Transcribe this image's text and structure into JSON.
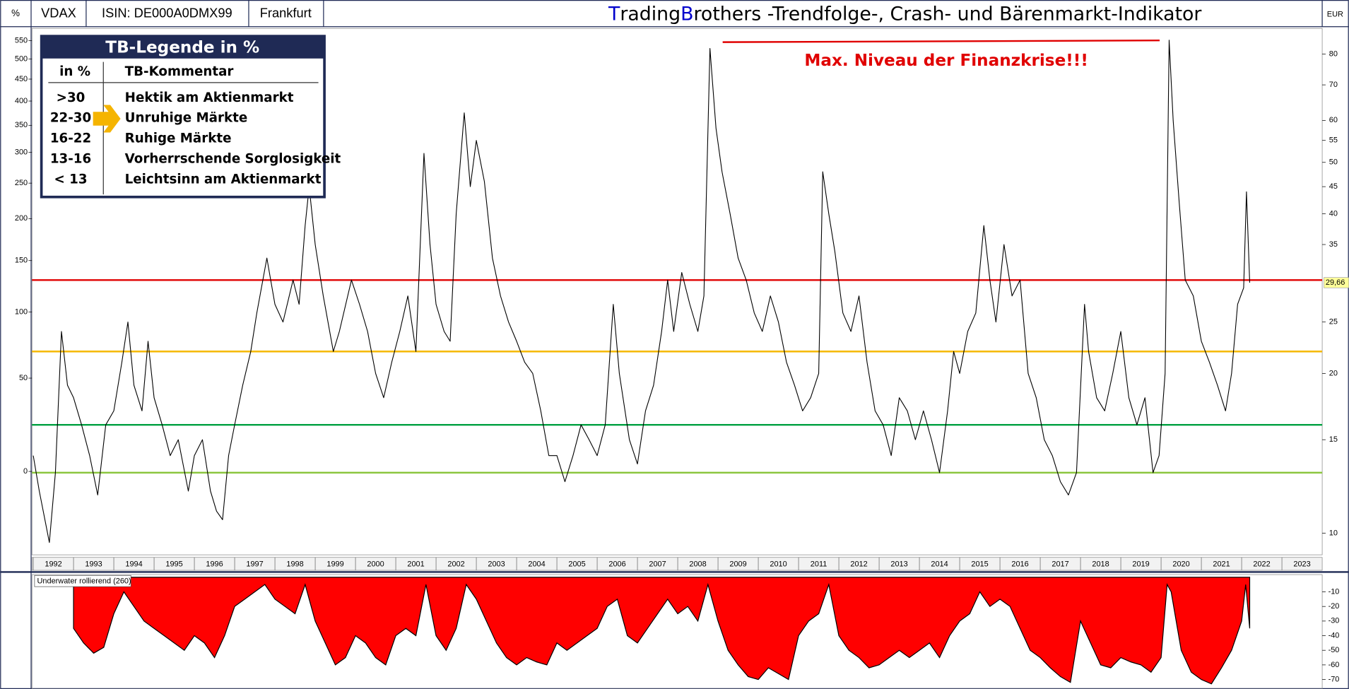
{
  "header": {
    "cells": [
      "%",
      "VDAX",
      "ISIN: DE000A0DMX99",
      "Frankfurt"
    ],
    "title_parts": [
      {
        "text": "T",
        "color": "#0000cc"
      },
      {
        "text": "rading",
        "color": "#000000"
      },
      {
        "text": "B",
        "color": "#0000cc"
      },
      {
        "text": "rothers -Trendfolge-, Crash- und Bärenmarkt-Indikator",
        "color": "#000000"
      }
    ],
    "right_unit": "EUR"
  },
  "legend_box": {
    "title": "TB-Legende in %",
    "columns": [
      "in %",
      "TB-Kommentar"
    ],
    "rows": [
      [
        ">30",
        "Hektik am Aktienmarkt"
      ],
      [
        "22-30",
        "Unruhige Märkte"
      ],
      [
        "16-22",
        "Ruhige Märkte"
      ],
      [
        "13-16",
        "Vorherrschende Sorglosigkeit"
      ],
      [
        "< 13",
        "Leichtsinn am Aktienmarkt"
      ]
    ]
  },
  "chart_data": [
    {
      "type": "line",
      "name": "VDAX",
      "color": "#000000",
      "log_scale": true,
      "annotation": "Max. Niveau der Finanzkrise!!!",
      "xlim": [
        1992,
        2024
      ],
      "xticks": [
        1992,
        1993,
        1994,
        1995,
        1996,
        1997,
        1998,
        1999,
        2000,
        2001,
        2002,
        2003,
        2004,
        2005,
        2006,
        2007,
        2008,
        2009,
        2010,
        2011,
        2012,
        2013,
        2014,
        2015,
        2016,
        2017,
        2018,
        2019,
        2020,
        2021,
        2022,
        2023
      ],
      "ylim": [
        9.1,
        87.8
      ],
      "yticks": [
        10,
        15,
        20,
        25,
        35,
        40,
        45,
        50,
        55,
        60,
        70,
        80
      ],
      "y2lim": [
        -30.4,
        573
      ],
      "y2ticks": [
        0,
        50,
        100,
        150,
        200,
        250,
        300,
        350,
        400,
        450,
        500,
        550
      ],
      "reference_lines": [
        {
          "value": 30,
          "color": "#e00000"
        },
        {
          "value": 22,
          "color": "#f5b800"
        },
        {
          "value": 16,
          "color": "#00a040"
        },
        {
          "value": 13,
          "color": "#8cc63f"
        }
      ],
      "last_value": {
        "value": 29.66,
        "label": "29,66"
      },
      "x": [
        1992.0,
        1992.15,
        1992.3,
        1992.4,
        1992.55,
        1992.7,
        1992.85,
        1993.0,
        1993.2,
        1993.4,
        1993.6,
        1993.8,
        1994.0,
        1994.2,
        1994.35,
        1994.5,
        1994.7,
        1994.85,
        1995.0,
        1995.2,
        1995.4,
        1995.6,
        1995.85,
        1996.0,
        1996.2,
        1996.4,
        1996.55,
        1996.7,
        1996.85,
        1997.0,
        1997.2,
        1997.4,
        1997.55,
        1997.8,
        1998.0,
        1998.2,
        1998.45,
        1998.6,
        1998.75,
        1998.85,
        1999.0,
        1999.2,
        1999.45,
        1999.6,
        1999.9,
        2000.1,
        2000.3,
        2000.5,
        2000.7,
        2000.9,
        2001.1,
        2001.3,
        2001.5,
        2001.7,
        2001.85,
        2002.0,
        2002.2,
        2002.35,
        2002.5,
        2002.7,
        2002.85,
        2003.0,
        2003.2,
        2003.4,
        2003.6,
        2003.8,
        2004.0,
        2004.2,
        2004.4,
        2004.6,
        2004.8,
        2005.0,
        2005.2,
        2005.4,
        2005.6,
        2005.8,
        2006.0,
        2006.2,
        2006.4,
        2006.55,
        2006.8,
        2007.0,
        2007.2,
        2007.4,
        2007.6,
        2007.75,
        2007.9,
        2008.1,
        2008.3,
        2008.5,
        2008.65,
        2008.8,
        2008.95,
        2009.1,
        2009.3,
        2009.5,
        2009.7,
        2009.9,
        2010.1,
        2010.3,
        2010.5,
        2010.7,
        2010.9,
        2011.1,
        2011.3,
        2011.5,
        2011.6,
        2011.75,
        2011.9,
        2012.1,
        2012.3,
        2012.5,
        2012.7,
        2012.9,
        2013.1,
        2013.3,
        2013.5,
        2013.7,
        2013.9,
        2014.1,
        2014.3,
        2014.5,
        2014.7,
        2014.85,
        2015.0,
        2015.2,
        2015.4,
        2015.6,
        2015.75,
        2015.9,
        2016.1,
        2016.3,
        2016.5,
        2016.7,
        2016.9,
        2017.1,
        2017.3,
        2017.5,
        2017.7,
        2017.9,
        2018.1,
        2018.2,
        2018.4,
        2018.6,
        2018.8,
        2019.0,
        2019.2,
        2019.4,
        2019.6,
        2019.8,
        2019.95,
        2020.1,
        2020.2,
        2020.3,
        2020.45,
        2020.6,
        2020.8,
        2021.0,
        2021.2,
        2021.4,
        2021.6,
        2021.75,
        2021.9,
        2022.05,
        2022.12,
        2022.2
      ],
      "values": [
        14,
        12,
        10.5,
        9.6,
        13,
        24,
        19,
        18,
        16,
        14,
        11.8,
        16,
        17,
        21,
        25,
        19,
        17,
        23,
        18,
        16,
        14,
        15,
        12,
        14,
        15,
        12,
        11,
        10.6,
        14,
        16,
        19,
        22,
        26,
        33,
        27,
        25,
        30,
        27,
        38,
        45,
        35,
        28,
        22,
        24,
        30,
        27,
        24,
        20,
        18,
        21,
        24,
        28,
        22,
        52,
        35,
        27,
        24,
        23,
        40,
        62,
        45,
        55,
        46,
        33,
        28,
        25,
        23,
        21,
        20,
        17,
        14,
        14,
        12.5,
        14,
        16,
        15,
        14,
        16,
        27,
        20,
        15,
        13.5,
        17,
        19,
        24,
        30,
        24,
        31,
        27,
        24,
        28,
        82,
        58,
        48,
        40,
        33,
        30,
        26,
        24,
        28,
        25,
        21,
        19,
        17,
        18,
        20,
        48,
        40,
        34,
        26,
        24,
        28,
        21,
        17,
        16,
        14,
        18,
        17,
        15,
        17,
        15,
        13,
        17,
        22,
        20,
        24,
        26,
        38,
        30,
        25,
        35,
        28,
        30,
        20,
        18,
        15,
        14,
        12.5,
        11.8,
        13,
        27,
        22,
        18,
        17,
        20,
        24,
        18,
        16,
        18,
        13,
        14,
        20,
        85,
        60,
        42,
        30,
        28,
        23,
        21,
        19,
        17,
        20,
        27,
        29,
        44,
        29.66
      ]
    },
    {
      "type": "area",
      "title": "Underwater rollierend (260)",
      "color": "#ff0000",
      "ylim": [
        -76.5,
        1.8
      ],
      "yticks": [
        -10,
        -20,
        -30,
        -40,
        -50,
        -60,
        -70
      ],
      "x": [
        1993.0,
        1993.25,
        1993.5,
        1993.75,
        1994.0,
        1994.25,
        1994.5,
        1994.75,
        1995.0,
        1995.25,
        1995.5,
        1995.75,
        1996.0,
        1996.25,
        1996.5,
        1996.75,
        1997.0,
        1997.25,
        1997.5,
        1997.75,
        1998.0,
        1998.25,
        1998.5,
        1998.75,
        1999.0,
        1999.25,
        1999.5,
        1999.75,
        2000.0,
        2000.25,
        2000.5,
        2000.75,
        2001.0,
        2001.25,
        2001.5,
        2001.75,
        2002.0,
        2002.25,
        2002.5,
        2002.75,
        2003.0,
        2003.25,
        2003.5,
        2003.75,
        2004.0,
        2004.25,
        2004.5,
        2004.75,
        2005.0,
        2005.25,
        2005.5,
        2005.75,
        2006.0,
        2006.25,
        2006.5,
        2006.75,
        2007.0,
        2007.25,
        2007.5,
        2007.75,
        2008.0,
        2008.25,
        2008.5,
        2008.75,
        2009.0,
        2009.25,
        2009.5,
        2009.75,
        2010.0,
        2010.25,
        2010.5,
        2010.75,
        2011.0,
        2011.25,
        2011.5,
        2011.75,
        2012.0,
        2012.25,
        2012.5,
        2012.75,
        2013.0,
        2013.25,
        2013.5,
        2013.75,
        2014.0,
        2014.25,
        2014.5,
        2014.75,
        2015.0,
        2015.25,
        2015.5,
        2015.75,
        2016.0,
        2016.25,
        2016.5,
        2016.75,
        2017.0,
        2017.25,
        2017.5,
        2017.75,
        2018.0,
        2018.25,
        2018.5,
        2018.75,
        2019.0,
        2019.25,
        2019.5,
        2019.75,
        2020.0,
        2020.15,
        2020.25,
        2020.5,
        2020.75,
        2021.0,
        2021.25,
        2021.5,
        2021.75,
        2022.0,
        2022.1,
        2022.2
      ],
      "values": [
        -35,
        -45,
        -52,
        -48,
        -25,
        -10,
        -20,
        -30,
        -35,
        -40,
        -45,
        -50,
        -40,
        -45,
        -55,
        -40,
        -20,
        -15,
        -10,
        -5,
        -15,
        -20,
        -25,
        -5,
        -30,
        -45,
        -60,
        -55,
        -40,
        -45,
        -55,
        -60,
        -40,
        -35,
        -40,
        -5,
        -40,
        -50,
        -35,
        -5,
        -15,
        -30,
        -45,
        -55,
        -60,
        -55,
        -58,
        -60,
        -45,
        -50,
        -45,
        -40,
        -35,
        -20,
        -15,
        -40,
        -45,
        -35,
        -25,
        -15,
        -25,
        -20,
        -30,
        -5,
        -30,
        -50,
        -60,
        -68,
        -70,
        -62,
        -66,
        -70,
        -40,
        -30,
        -25,
        -5,
        -40,
        -50,
        -55,
        -62,
        -60,
        -55,
        -50,
        -55,
        -50,
        -45,
        -55,
        -40,
        -30,
        -25,
        -10,
        -20,
        -15,
        -20,
        -35,
        -50,
        -55,
        -62,
        -68,
        -72,
        -30,
        -45,
        -60,
        -62,
        -55,
        -58,
        -60,
        -65,
        -55,
        -5,
        -10,
        -50,
        -65,
        -70,
        -73,
        -62,
        -50,
        -30,
        -5,
        -35
      ]
    }
  ]
}
